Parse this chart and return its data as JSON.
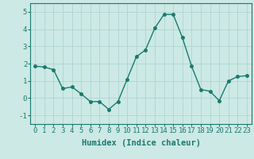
{
  "x": [
    0,
    1,
    2,
    3,
    4,
    5,
    6,
    7,
    8,
    9,
    10,
    11,
    12,
    13,
    14,
    15,
    16,
    17,
    18,
    19,
    20,
    21,
    22,
    23
  ],
  "y": [
    1.85,
    1.8,
    1.65,
    0.55,
    0.65,
    0.25,
    -0.2,
    -0.2,
    -0.65,
    -0.2,
    1.1,
    2.4,
    2.8,
    4.05,
    4.85,
    4.85,
    3.5,
    1.85,
    0.5,
    0.4,
    -0.15,
    1.0,
    1.25,
    1.3
  ],
  "line_color": "#1a7a6e",
  "marker_color": "#1a7a6e",
  "bg_color": "#cce9e5",
  "grid_color": "#b0d4d0",
  "xlabel": "Humidex (Indice chaleur)",
  "ylim": [
    -1.5,
    5.5
  ],
  "xlim": [
    -0.5,
    23.5
  ],
  "yticks": [
    -1,
    0,
    1,
    2,
    3,
    4,
    5
  ],
  "xticks": [
    0,
    1,
    2,
    3,
    4,
    5,
    6,
    7,
    8,
    9,
    10,
    11,
    12,
    13,
    14,
    15,
    16,
    17,
    18,
    19,
    20,
    21,
    22,
    23
  ],
  "xlabel_fontsize": 7.5,
  "tick_fontsize": 6.5,
  "linewidth": 1.0,
  "markersize": 2.5
}
